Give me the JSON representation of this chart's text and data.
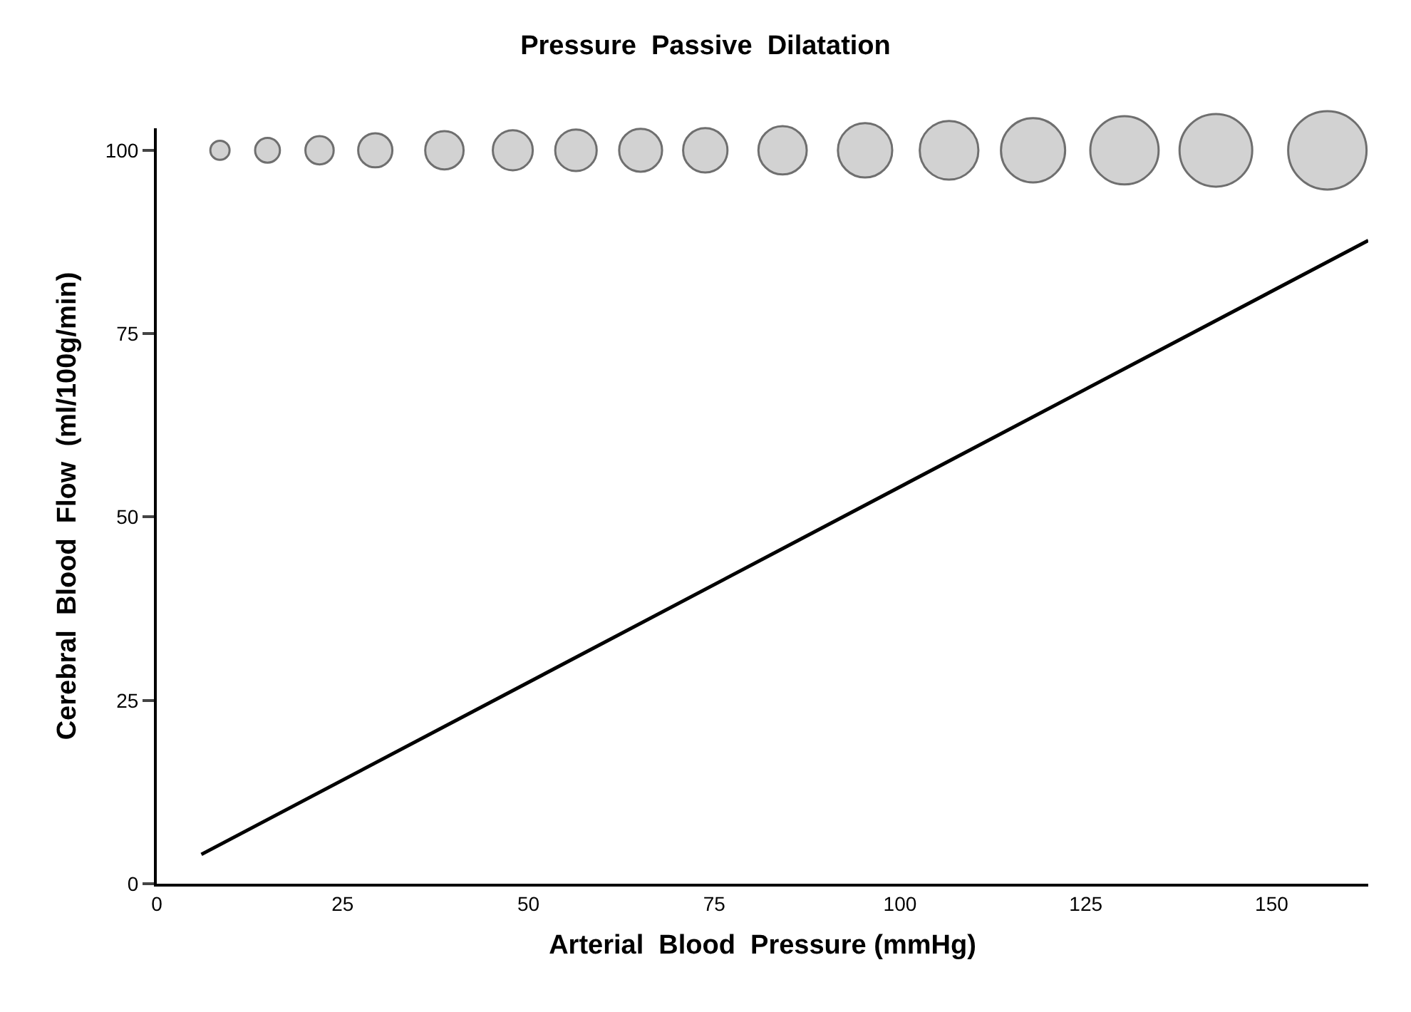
{
  "chart_data": {
    "type": "line",
    "title": "Pressure  Passive  Dilatation",
    "xlabel": "Arterial  Blood  Pressure (mmHg)",
    "ylabel": "Cerebral  Blood  Flow  (ml/100g/min)",
    "xlim": [
      0,
      163
    ],
    "xticks": [
      0,
      25,
      50,
      75,
      100,
      125,
      150
    ],
    "ylim": [
      0,
      103
    ],
    "yticks": [
      0,
      25,
      50,
      75,
      100
    ],
    "series": [
      {
        "color": "#000000",
        "x": [
          6,
          163
        ],
        "values": [
          4,
          87.7
        ],
        "marker": "none",
        "line_style": "solid"
      },
      {
        "type": "bubble",
        "color": "#c0c0c0",
        "x": [
          8.5,
          14.9,
          21.9,
          29.4,
          38.7,
          47.9,
          56.4,
          65.1,
          73.8,
          84.2,
          95.3,
          106.6,
          117.9,
          130.2,
          142.5,
          157.5
        ],
        "values": [
          100,
          100,
          100,
          100,
          100,
          100,
          100,
          100,
          100,
          100,
          100,
          100,
          100,
          100,
          100,
          100
        ],
        "sizes": [
          0.06,
          0.1,
          0.13,
          0.19,
          0.24,
          0.26,
          0.28,
          0.3,
          0.32,
          0.38,
          0.48,
          0.56,
          0.67,
          0.76,
          0.86,
          1.0
        ]
      }
    ]
  }
}
